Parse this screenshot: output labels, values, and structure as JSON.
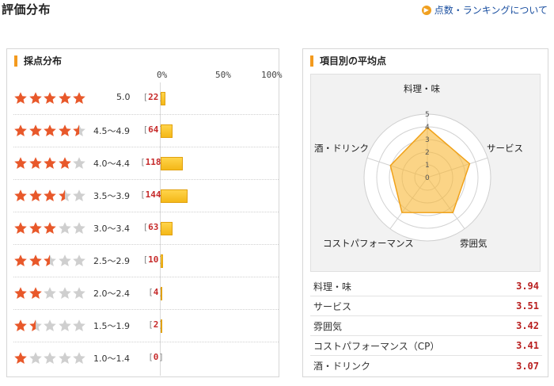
{
  "header": {
    "title": "評価分布",
    "ranking_link": "点数・ランキングについて"
  },
  "distribution": {
    "title": "採点分布",
    "axis": [
      "0%",
      "50%",
      "100%"
    ],
    "rows": [
      {
        "stars": 5.0,
        "range": "5.0",
        "count": "22",
        "percent": 4
      },
      {
        "stars": 4.5,
        "range": "4.5～4.9",
        "count": "64",
        "percent": 11
      },
      {
        "stars": 4.0,
        "range": "4.0～4.4",
        "count": "118",
        "percent": 20
      },
      {
        "stars": 3.5,
        "range": "3.5～3.9",
        "count": "144",
        "percent": 24
      },
      {
        "stars": 3.0,
        "range": "3.0～3.4",
        "count": "63",
        "percent": 11
      },
      {
        "stars": 2.5,
        "range": "2.5～2.9",
        "count": "10",
        "percent": 2
      },
      {
        "stars": 2.0,
        "range": "2.0～2.4",
        "count": "4",
        "percent": 1
      },
      {
        "stars": 1.5,
        "range": "1.5～1.9",
        "count": "2",
        "percent": 0.5
      },
      {
        "stars": 1.0,
        "range": "1.0～1.4",
        "count": "0",
        "percent": 0
      }
    ]
  },
  "averages": {
    "title": "項目別の平均点",
    "radar_labels": {
      "food": "料理・味",
      "service": "サービス",
      "atmosphere": "雰囲気",
      "cp": "コストパフォーマンス",
      "drink": "酒・ドリンク"
    },
    "scale_ticks": [
      "0",
      "1",
      "2",
      "3",
      "4",
      "5"
    ],
    "items": [
      {
        "name": "料理・味",
        "value": "3.94"
      },
      {
        "name": "サービス",
        "value": "3.51"
      },
      {
        "name": "雰囲気",
        "value": "3.42"
      },
      {
        "name": "コストパフォーマンス（CP）",
        "value": "3.41"
      },
      {
        "name": "酒・ドリンク",
        "value": "3.07"
      }
    ]
  },
  "colors": {
    "accent": "#f39a1e",
    "star_on": "#e8582a",
    "star_partial_on": "#f5b800",
    "star_off": "#cfcfcf",
    "bar": "#f4b818",
    "value": "#b92020",
    "link": "#1a4fa0"
  }
}
